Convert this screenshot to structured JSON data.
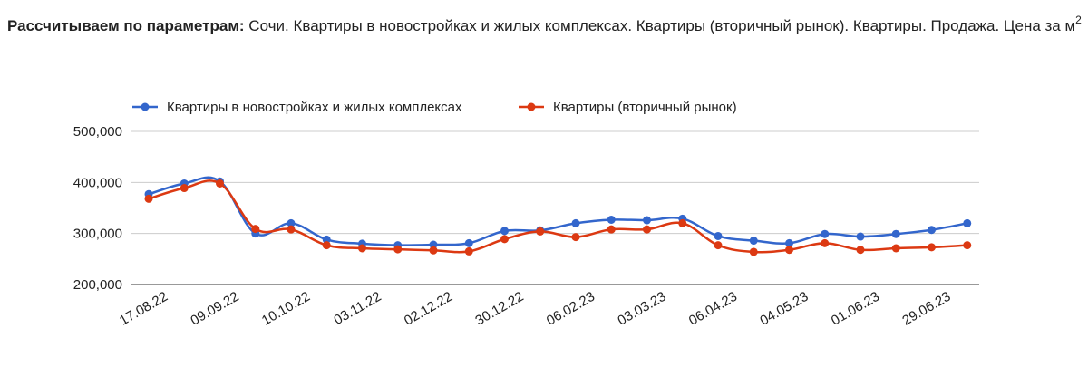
{
  "header": {
    "label": "Рассчитываем по параметрам:",
    "text": "Сочи. Квартиры в новостройках и жилых комплексах. Квартиры (вторичный рынок). Квартиры. Продажа. Цена за м",
    "superscript": "2"
  },
  "chart_data": {
    "type": "line",
    "x": [
      "17.08.22",
      "",
      "09.09.22",
      "",
      "10.10.22",
      "",
      "03.11.22",
      "",
      "02.12.22",
      "",
      "30.12.22",
      "",
      "06.02.23",
      "",
      "03.03.23",
      "",
      "06.04.23",
      "",
      "04.05.23",
      "",
      "01.06.23",
      "",
      "29.06.23",
      ""
    ],
    "x_tick_labels": [
      "17.08.22",
      "09.09.22",
      "10.10.22",
      "03.11.22",
      "02.12.22",
      "30.12.22",
      "06.02.23",
      "03.03.23",
      "06.04.23",
      "04.05.23",
      "01.06.23",
      "29.06.23"
    ],
    "y_tick_labels": [
      "500,000",
      "400,000",
      "300,000",
      "200,000"
    ],
    "ylim": [
      200000,
      500000
    ],
    "grid": true,
    "legend": "top",
    "series": [
      {
        "name": "Квартиры в новостройках и жилых комплексах",
        "color": "#3366cc",
        "values": [
          377000,
          398000,
          402000,
          300000,
          320000,
          288000,
          280000,
          277000,
          278000,
          281000,
          305000,
          306000,
          320000,
          327000,
          326000,
          329000,
          295000,
          286000,
          281000,
          299000,
          294000,
          299000,
          307000,
          320000
        ]
      },
      {
        "name": "Квартиры (вторичный рынок)",
        "color": "#dc3912",
        "values": [
          368000,
          389000,
          398000,
          309000,
          308000,
          277000,
          271000,
          269000,
          267000,
          265000,
          289000,
          304000,
          293000,
          308000,
          308000,
          320000,
          277000,
          264000,
          268000,
          281000,
          268000,
          271000,
          273000,
          277000
        ]
      }
    ]
  }
}
